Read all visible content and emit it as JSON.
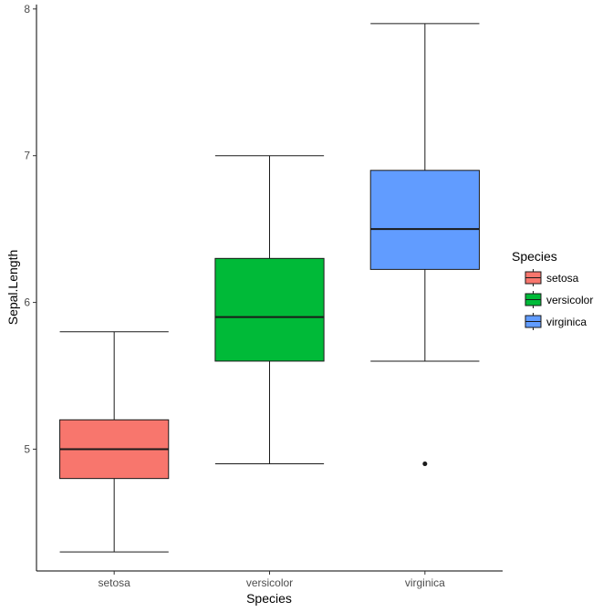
{
  "chart_data": {
    "type": "boxplot",
    "title": "",
    "xlabel": "Species",
    "ylabel": "Sepal.Length",
    "ylim": [
      4.17,
      8.03
    ],
    "yticks": [
      5,
      6,
      7,
      8
    ],
    "grid": false,
    "legend": {
      "title": "Species",
      "position": "right"
    },
    "series": [
      {
        "name": "setosa",
        "color": "#F8766D",
        "min": 4.3,
        "q1": 4.8,
        "median": 5.0,
        "q3": 5.2,
        "max": 5.8,
        "outliers": []
      },
      {
        "name": "versicolor",
        "color": "#00BA38",
        "min": 4.9,
        "q1": 5.6,
        "median": 5.9,
        "q3": 6.3,
        "max": 7.0,
        "outliers": []
      },
      {
        "name": "virginica",
        "color": "#619CFF",
        "min": 5.6,
        "q1": 6.225,
        "median": 6.5,
        "q3": 6.9,
        "max": 7.9,
        "outliers": [
          4.9
        ]
      }
    ]
  }
}
